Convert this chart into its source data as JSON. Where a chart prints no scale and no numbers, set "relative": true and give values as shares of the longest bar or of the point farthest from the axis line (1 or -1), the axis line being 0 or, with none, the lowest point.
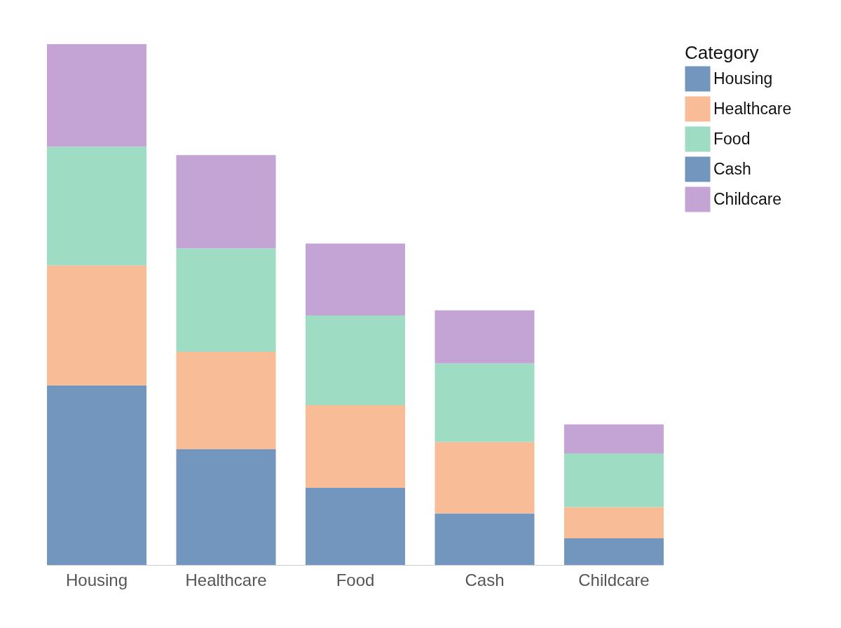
{
  "chart_data": {
    "type": "bar",
    "stacked": true,
    "relative": true,
    "legend_title": "Category",
    "legend": "top right",
    "grid": false,
    "categories": [
      "Housing",
      "Healthcare",
      "Food",
      "Cash",
      "Childcare"
    ],
    "series": [
      {
        "name": "Housing",
        "color": "#7396be",
        "values": [
          0.345,
          0.222,
          0.148,
          0.099,
          0.051
        ]
      },
      {
        "name": "Healthcare",
        "color": "#f8bc96",
        "values": [
          0.23,
          0.187,
          0.159,
          0.137,
          0.06
        ]
      },
      {
        "name": "Food",
        "color": "#9edcc3",
        "values": [
          0.228,
          0.199,
          0.172,
          0.151,
          0.103
        ]
      },
      {
        "name": "Cash",
        "color": "#7396be",
        "values": [
          null,
          null,
          null,
          null,
          null
        ]
      },
      {
        "name": "Childcare",
        "color": "#c4a3d5",
        "values": [
          0.197,
          0.179,
          0.138,
          0.102,
          0.056
        ]
      }
    ]
  }
}
